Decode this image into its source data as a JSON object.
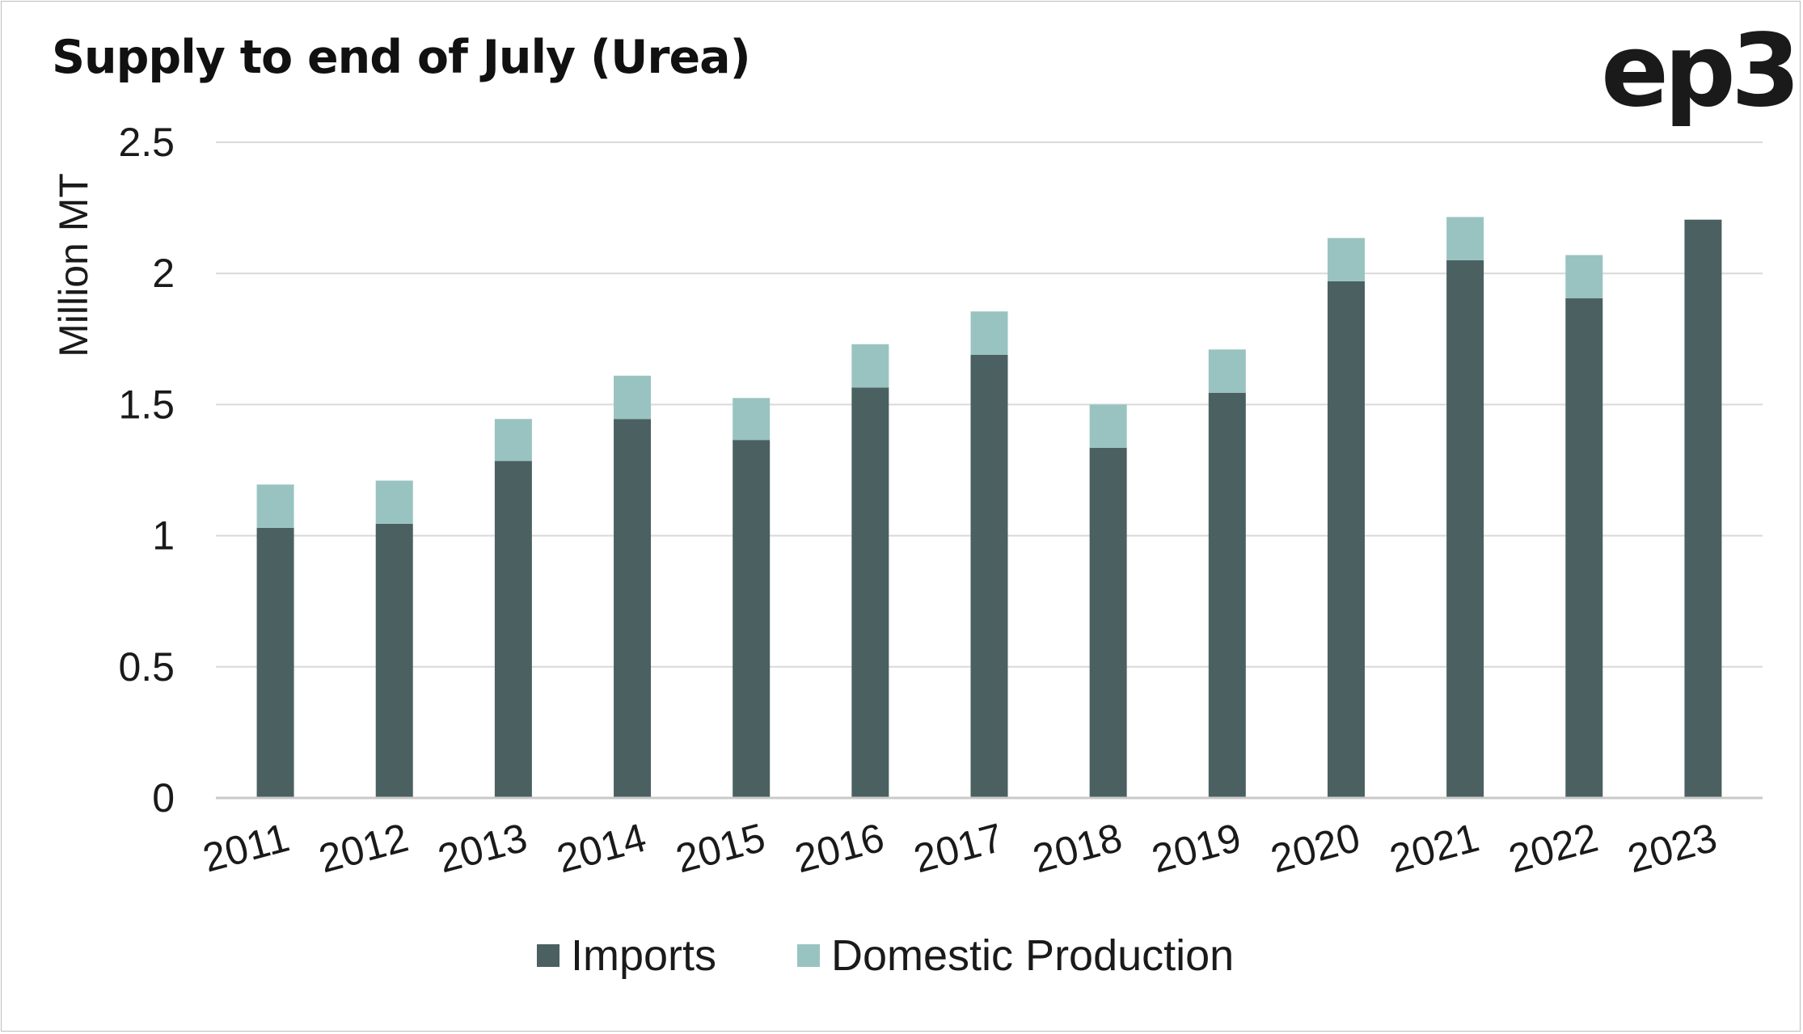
{
  "chart_data": {
    "type": "bar",
    "stacked": true,
    "title": "Supply to end of July (Urea)",
    "logo_text": "ep3",
    "ylabel": "Million MT",
    "xlabel": "",
    "ylim": [
      0,
      2.5
    ],
    "yticks": [
      {
        "value": 0,
        "label": "0"
      },
      {
        "value": 0.5,
        "label": "0.5"
      },
      {
        "value": 1,
        "label": "1"
      },
      {
        "value": 1.5,
        "label": "1.5"
      },
      {
        "value": 2,
        "label": "2"
      },
      {
        "value": 2.5,
        "label": "2.5"
      }
    ],
    "grid": true,
    "legend_position": "bottom-center",
    "categories": [
      "2011",
      "2012",
      "2013",
      "2014",
      "2015",
      "2016",
      "2017",
      "2018",
      "2019",
      "2020",
      "2021",
      "2022",
      "2023"
    ],
    "series": [
      {
        "name": "Imports",
        "color": "#4b6060",
        "values": [
          1.03,
          1.045,
          1.285,
          1.445,
          1.365,
          1.565,
          1.69,
          1.335,
          1.545,
          1.97,
          2.05,
          1.905,
          2.205
        ]
      },
      {
        "name": "Domestic Production",
        "color": "#99c3c1",
        "values": [
          0.165,
          0.165,
          0.16,
          0.165,
          0.16,
          0.165,
          0.165,
          0.165,
          0.165,
          0.165,
          0.165,
          0.165,
          0
        ]
      }
    ]
  }
}
